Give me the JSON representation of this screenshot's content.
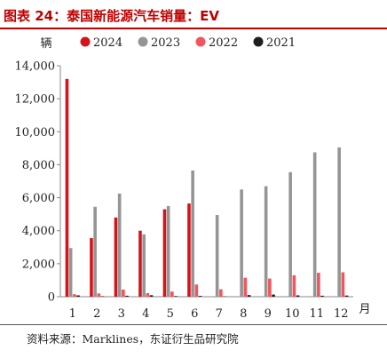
{
  "title": "图表 24：泰国新能源汽车销量：EV",
  "source": "资料来源：Marklines，东证衍生品研究院",
  "colors": {
    "accent": "#c00000",
    "series_2024": "#d4141c",
    "series_2023": "#959595",
    "series_2022": "#f2555d",
    "series_2021": "#1f1f1f"
  },
  "chart_data": {
    "type": "bar",
    "ylabel": "辆",
    "xlabel": "月",
    "ylim": [
      0,
      14000
    ],
    "yticks": [
      0,
      2000,
      4000,
      6000,
      8000,
      10000,
      12000,
      14000
    ],
    "ytick_labels": [
      "0",
      "2,000",
      "4,000",
      "6,000",
      "8,000",
      "10,000",
      "12,000",
      "14,000"
    ],
    "categories": [
      "1",
      "2",
      "3",
      "4",
      "5",
      "6",
      "7",
      "8",
      "9",
      "10",
      "11",
      "12"
    ],
    "legend_position": "top",
    "grid": false,
    "series": [
      {
        "name": "2024",
        "color": "#d4141c",
        "values": [
          13200,
          3550,
          4800,
          4000,
          5300,
          5650,
          null,
          null,
          null,
          null,
          null,
          null
        ]
      },
      {
        "name": "2023",
        "color": "#959595",
        "values": [
          2950,
          5450,
          6250,
          3780,
          5500,
          7650,
          4950,
          6500,
          6700,
          7550,
          8750,
          9050
        ]
      },
      {
        "name": "2022",
        "color": "#f2555d",
        "values": [
          150,
          200,
          430,
          220,
          310,
          740,
          450,
          1150,
          1100,
          1300,
          1450,
          1480
        ]
      },
      {
        "name": "2021",
        "color": "#1f1f1f",
        "values": [
          80,
          30,
          60,
          90,
          40,
          50,
          20,
          100,
          130,
          80,
          60,
          70
        ]
      }
    ]
  }
}
